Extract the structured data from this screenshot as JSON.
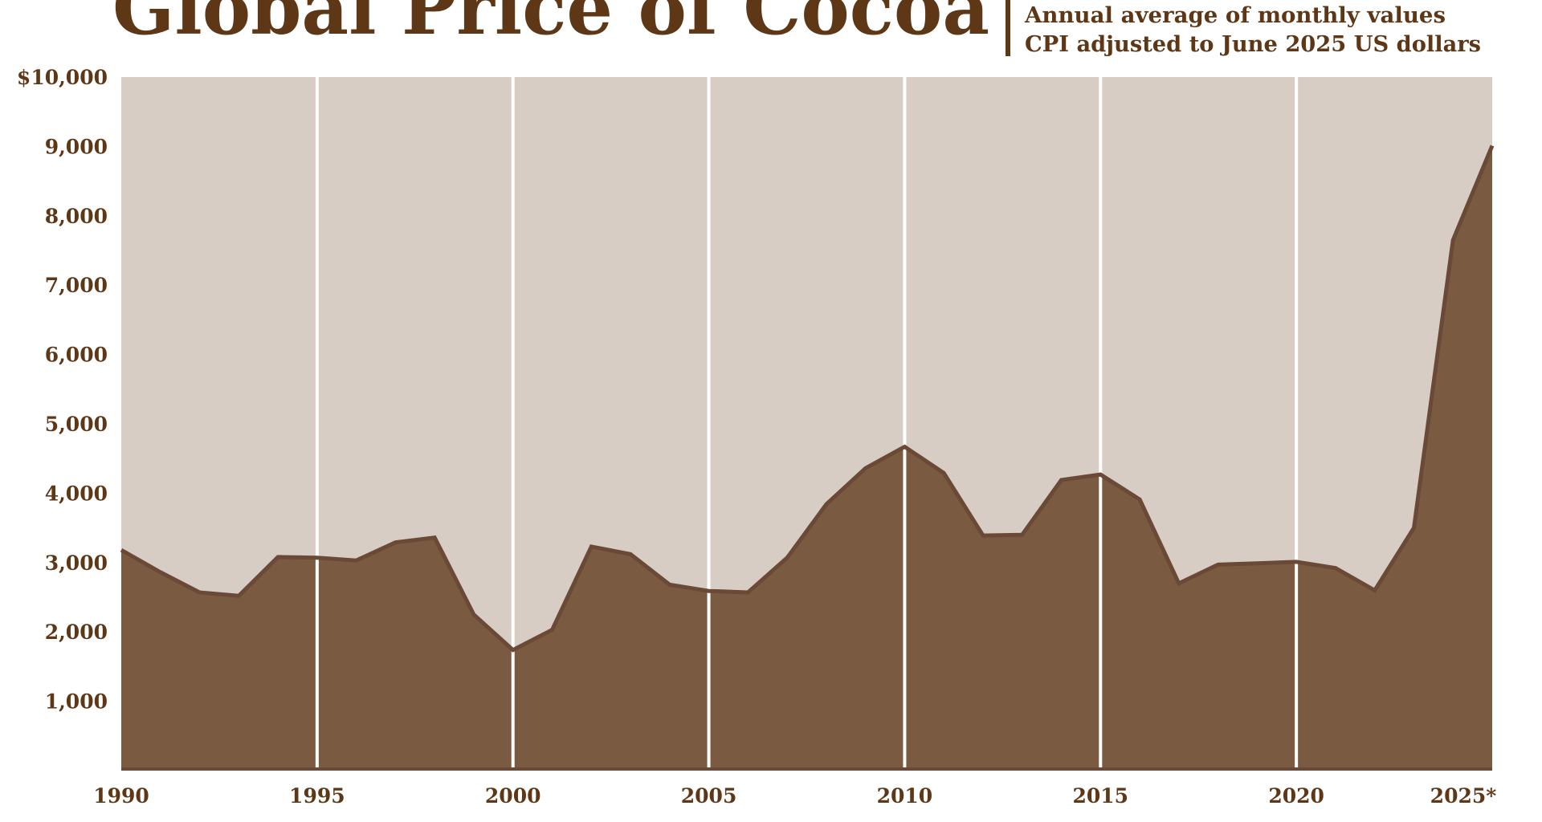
{
  "header": {
    "title": "Global Price of Cocoa",
    "subtitle_line1": "Annual average of monthly values",
    "subtitle_line2": "CPI adjusted to June 2025 US dollars"
  },
  "colors": {
    "title": "#5e3716",
    "plot_background": "#d8cdc4",
    "area_fill": "#7a5a40",
    "area_outline": "#6a4a36",
    "gridline": "#ffffff"
  },
  "chart_data": {
    "type": "area",
    "title": "Global Price of Cocoa",
    "subtitle": "Annual average of monthly values; CPI adjusted to June 2025 US dollars",
    "xlabel": "",
    "ylabel": "",
    "x": [
      1990,
      1991,
      1992,
      1993,
      1994,
      1995,
      1996,
      1997,
      1998,
      1999,
      2000,
      2001,
      2002,
      2003,
      2004,
      2005,
      2006,
      2007,
      2008,
      2009,
      2010,
      2011,
      2012,
      2013,
      2014,
      2015,
      2016,
      2017,
      2018,
      2019,
      2020,
      2021,
      2022,
      2023,
      2024,
      2025
    ],
    "values": [
      3180,
      2860,
      2570,
      2520,
      3080,
      3070,
      3030,
      3290,
      3360,
      2250,
      1740,
      2030,
      3230,
      3120,
      2680,
      2590,
      2570,
      3070,
      3840,
      4360,
      4670,
      4290,
      3390,
      3400,
      4190,
      4270,
      3910,
      2700,
      2970,
      2990,
      3010,
      2920,
      2600,
      3500,
      7650,
      9010
    ],
    "ylim": [
      0,
      10000
    ],
    "y_ticks": [
      {
        "value": 10000,
        "label": "$10,000"
      },
      {
        "value": 9000,
        "label": "9,000"
      },
      {
        "value": 8000,
        "label": "8,000"
      },
      {
        "value": 7000,
        "label": "7,000"
      },
      {
        "value": 6000,
        "label": "6,000"
      },
      {
        "value": 5000,
        "label": "5,000"
      },
      {
        "value": 4000,
        "label": "4,000"
      },
      {
        "value": 3000,
        "label": "3,000"
      },
      {
        "value": 2000,
        "label": "2,000"
      },
      {
        "value": 1000,
        "label": "1,000"
      }
    ],
    "x_ticks": [
      {
        "value": 1990,
        "label": "1990"
      },
      {
        "value": 1995,
        "label": "1995"
      },
      {
        "value": 2000,
        "label": "2000"
      },
      {
        "value": 2005,
        "label": "2005"
      },
      {
        "value": 2010,
        "label": "2010"
      },
      {
        "value": 2015,
        "label": "2015"
      },
      {
        "value": 2020,
        "label": "2020"
      },
      {
        "value": 2025,
        "label": "2025*"
      }
    ],
    "vertical_gridlines": [
      1995,
      2000,
      2005,
      2010,
      2015,
      2020
    ],
    "horizontal_gridlines": false,
    "legend": "none"
  }
}
